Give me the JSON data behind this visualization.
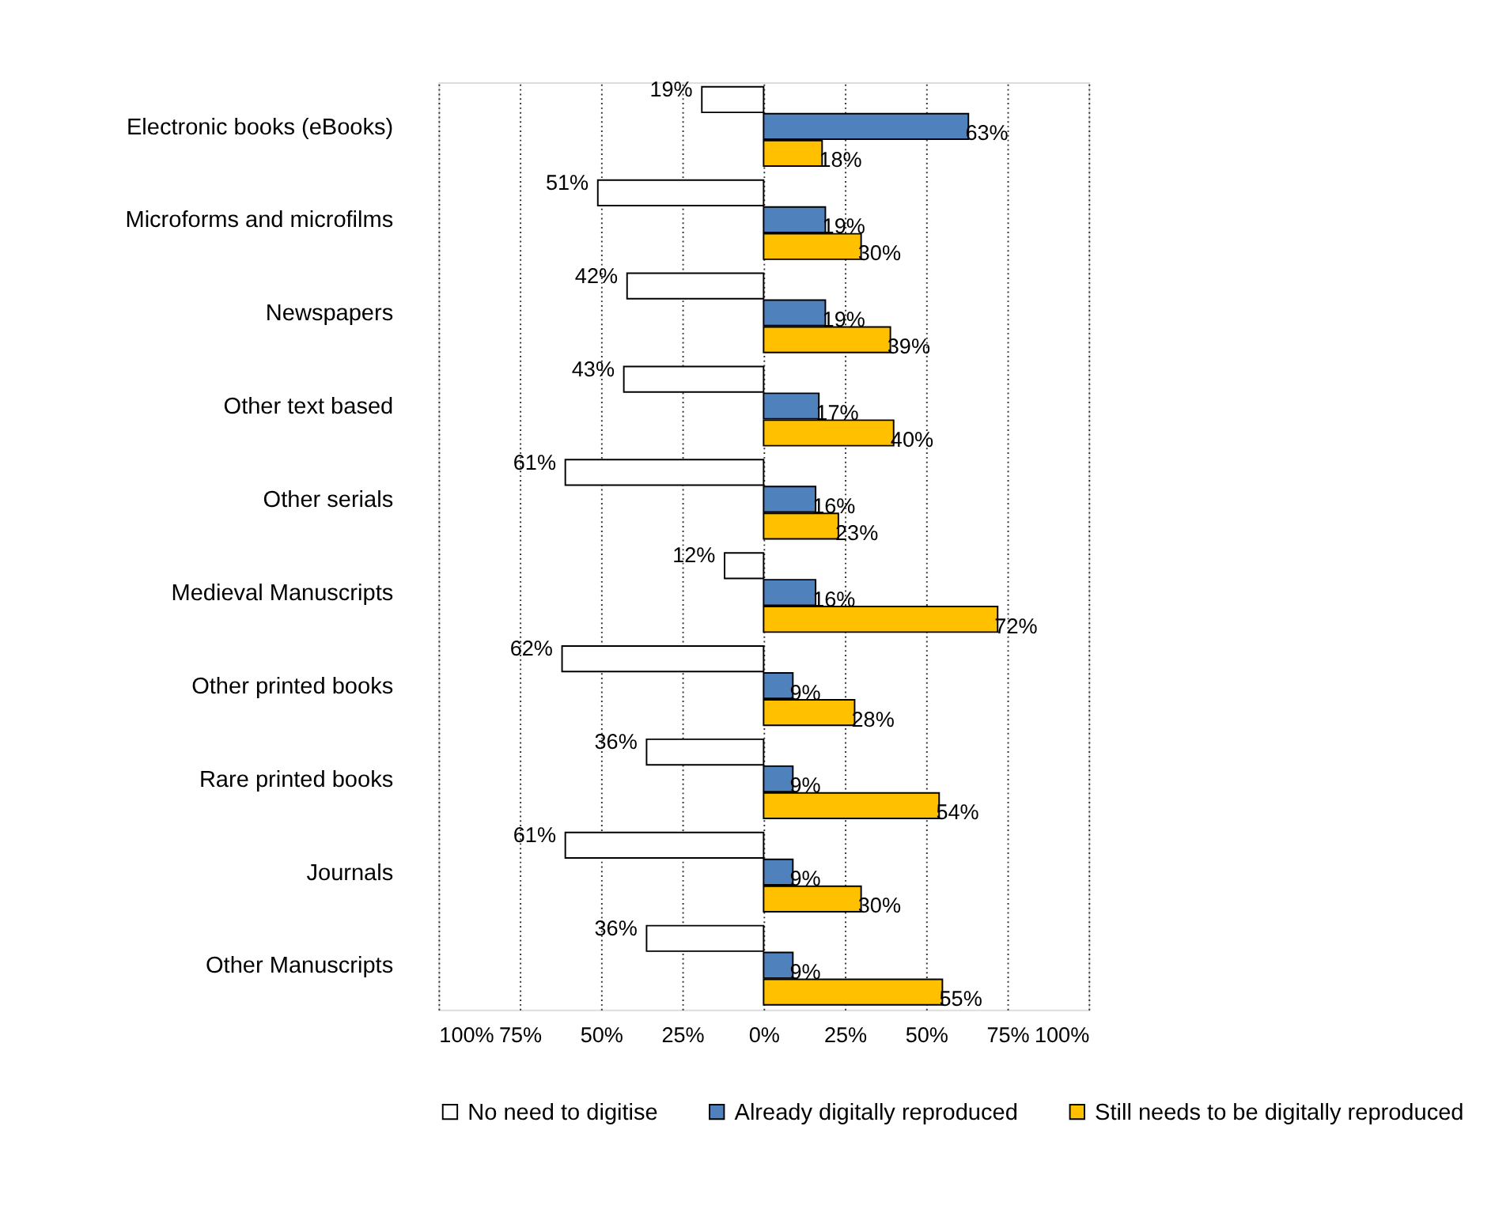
{
  "chart_data": {
    "type": "bar",
    "orientation": "horizontal",
    "legend": "bottom",
    "grid": "x",
    "categories": [
      "Electronic books (eBooks)",
      "Microforms and microfilms",
      "Newspapers",
      "Other text based",
      "Other serials",
      "Medieval Manuscripts",
      "Other printed books",
      "Rare printed books",
      "Journals",
      "Other Manuscripts"
    ],
    "xlim": [
      -100,
      100
    ],
    "xticks": [
      {
        "value": -100,
        "label": "100%"
      },
      {
        "value": -75,
        "label": "75%"
      },
      {
        "value": -50,
        "label": "50%"
      },
      {
        "value": -25,
        "label": "25%"
      },
      {
        "value": 0,
        "label": "0%"
      },
      {
        "value": 25,
        "label": "25%"
      },
      {
        "value": 50,
        "label": "50%"
      },
      {
        "value": 75,
        "label": "75%"
      },
      {
        "value": 100,
        "label": "100%"
      }
    ],
    "series": [
      {
        "name": "No need to digitise",
        "color": "#ffffff",
        "base": [
          -19,
          -51,
          -42,
          -43,
          -61,
          -12,
          -62,
          -36,
          -61,
          -36
        ],
        "values": [
          19,
          51,
          42,
          43,
          61,
          12,
          62,
          36,
          61,
          36
        ],
        "value_labels": [
          "19%",
          "51%",
          "42%",
          "43%",
          "61%",
          "12%",
          "62%",
          "36%",
          "61%",
          "36%"
        ]
      },
      {
        "name": "Already digitally reproduced",
        "color": "#4f81bd",
        "values": [
          63,
          19,
          19,
          17,
          16,
          16,
          9,
          9,
          9,
          9
        ],
        "value_labels": [
          "63%",
          "19%",
          "19%",
          "17%",
          "16%",
          "16%",
          "9%",
          "9%",
          "9%",
          "9%"
        ]
      },
      {
        "name": "Still needs to be digitally reproduced",
        "color": "#ffc000",
        "values": [
          18,
          30,
          39,
          40,
          23,
          72,
          28,
          54,
          30,
          55
        ],
        "value_labels": [
          "18%",
          "30%",
          "39%",
          "40%",
          "23%",
          "72%",
          "28%",
          "54%",
          "30%",
          "55%"
        ]
      }
    ]
  }
}
